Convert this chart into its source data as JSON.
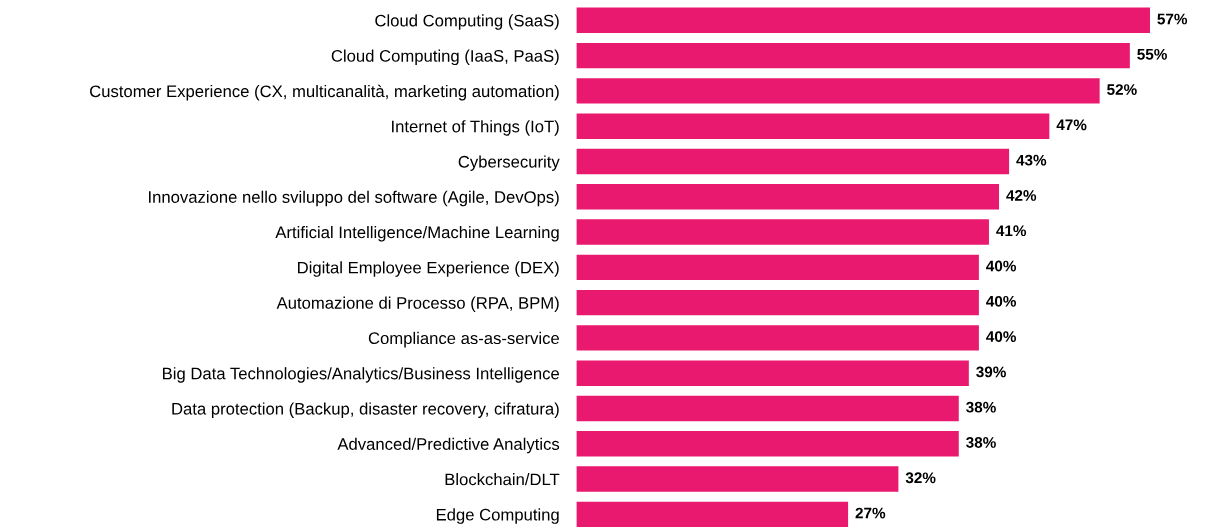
{
  "chart_data": {
    "type": "bar",
    "orientation": "horizontal",
    "categories": [
      "Cloud Computing (SaaS)",
      "Cloud Computing (IaaS, PaaS)",
      "Customer Experience (CX, multicanalità, marketing automation)",
      "Internet of Things (IoT)",
      "Cybersecurity",
      "Innovazione nello sviluppo del software (Agile, DevOps)",
      "Artificial Intelligence/Machine Learning",
      "Digital Employee Experience (DEX)",
      "Automazione di Processo (RPA, BPM)",
      "Compliance as-as-service",
      "Big Data Technologies/Analytics/Business Intelligence",
      "Data protection (Backup, disaster recovery, cifratura)",
      "Advanced/Predictive Analytics",
      "Blockchain/DLT",
      "Edge Computing"
    ],
    "values": [
      57,
      55,
      52,
      47,
      43,
      42,
      41,
      40,
      40,
      40,
      39,
      38,
      38,
      32,
      27
    ],
    "value_labels": [
      "57%",
      "55%",
      "52%",
      "47%",
      "43%",
      "42%",
      "41%",
      "40%",
      "40%",
      "40%",
      "39%",
      "38%",
      "38%",
      "32%",
      "27%"
    ],
    "color": "#e8196f",
    "grid": false,
    "legend": false
  }
}
